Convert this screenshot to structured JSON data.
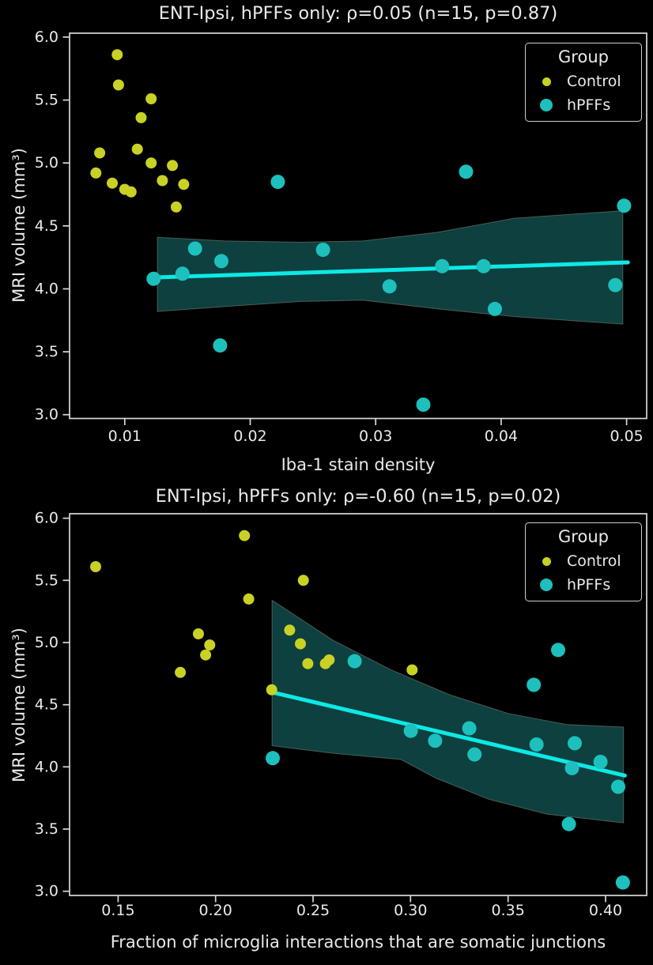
{
  "legend": {
    "title": "Group",
    "items": [
      {
        "label": "Control",
        "color_key": "control"
      },
      {
        "label": "hPFFs",
        "color_key": "hpffs"
      }
    ]
  },
  "colors": {
    "background": "#000000",
    "text": "#eaeaea",
    "axis": "#d9d9d9",
    "control": "#c9d125",
    "hpffs": "#1dc0bd",
    "regression": "#0de9e6",
    "band_fill": "#0d403e",
    "band_edge": "#5f6a61"
  },
  "chart_data": [
    {
      "type": "scatter",
      "title": "ENT-Ipsi, hPFFs only: ρ=0.05 (n=15, p=0.87)",
      "stats": {
        "rho": 0.05,
        "n": 15,
        "p": 0.87
      },
      "xlabel": "Iba-1 stain density",
      "ylabel": "MRI volume (mm³)",
      "xlim": [
        0.0056,
        0.0516
      ],
      "ylim": [
        2.97,
        6.031
      ],
      "xticks": [
        0.01,
        0.02,
        0.03,
        0.04,
        0.05
      ],
      "xtick_labels": [
        "0.01",
        "0.02",
        "0.03",
        "0.04",
        "0.05"
      ],
      "yticks": [
        6.0,
        5.5,
        5.0,
        4.5,
        4.0,
        3.5,
        3.0
      ],
      "ytick_labels": [
        "6.0",
        "5.5",
        "5.0",
        "4.5",
        "4.0",
        "3.5",
        "3.0"
      ],
      "grid": false,
      "legend_position": "upper right",
      "series": [
        {
          "name": "Control",
          "color_key": "control",
          "points": [
            [
              0.0094,
              5.86
            ],
            [
              0.0095,
              5.62
            ],
            [
              0.0121,
              5.51
            ],
            [
              0.0113,
              5.36
            ],
            [
              0.011,
              5.11
            ],
            [
              0.008,
              5.08
            ],
            [
              0.0121,
              5.0
            ],
            [
              0.0138,
              4.98
            ],
            [
              0.0077,
              4.92
            ],
            [
              0.013,
              4.86
            ],
            [
              0.009,
              4.84
            ],
            [
              0.0147,
              4.83
            ],
            [
              0.01,
              4.79
            ],
            [
              0.0105,
              4.77
            ],
            [
              0.0141,
              4.65
            ]
          ]
        },
        {
          "name": "hPFFs",
          "color_key": "hpffs",
          "points": [
            [
              0.0123,
              4.08
            ],
            [
              0.0146,
              4.12
            ],
            [
              0.0156,
              4.32
            ],
            [
              0.0177,
              4.22
            ],
            [
              0.0176,
              3.55
            ],
            [
              0.0222,
              4.85
            ],
            [
              0.0258,
              4.31
            ],
            [
              0.0311,
              4.02
            ],
            [
              0.0338,
              3.08
            ],
            [
              0.0353,
              4.18
            ],
            [
              0.0372,
              4.93
            ],
            [
              0.0386,
              4.18
            ],
            [
              0.0395,
              3.84
            ],
            [
              0.0491,
              4.03
            ],
            [
              0.0498,
              4.66
            ]
          ]
        }
      ],
      "regression_line": {
        "x": [
          0.0123,
          0.0501
        ],
        "y": [
          4.09,
          4.21
        ]
      },
      "confidence_band": {
        "top": [
          [
            0.0126,
            4.41
          ],
          [
            0.018,
            4.38
          ],
          [
            0.024,
            4.37
          ],
          [
            0.029,
            4.38
          ],
          [
            0.035,
            4.45
          ],
          [
            0.041,
            4.56
          ],
          [
            0.0497,
            4.62
          ]
        ],
        "bottom": [
          [
            0.0126,
            3.82
          ],
          [
            0.018,
            3.86
          ],
          [
            0.024,
            3.9
          ],
          [
            0.029,
            3.91
          ],
          [
            0.035,
            3.84
          ],
          [
            0.041,
            3.78
          ],
          [
            0.0497,
            3.72
          ]
        ]
      }
    },
    {
      "type": "scatter",
      "title": "ENT-Ipsi, hPFFs only: ρ=-0.60 (n=15, p=0.02)",
      "stats": {
        "rho": -0.6,
        "n": 15,
        "p": 0.02
      },
      "xlabel": "Fraction of microglia interactions that are somatic junctions",
      "ylabel": "MRI volume (mm³)",
      "xlim": [
        0.1251,
        0.4211
      ],
      "ylim": [
        2.966,
        6.036
      ],
      "xticks": [
        0.15,
        0.2,
        0.25,
        0.3,
        0.35,
        0.4
      ],
      "xtick_labels": [
        "0.15",
        "0.20",
        "0.25",
        "0.30",
        "0.35",
        "0.40"
      ],
      "yticks": [
        6.0,
        5.5,
        5.0,
        4.5,
        4.0,
        3.5,
        3.0
      ],
      "ytick_labels": [
        "6.0",
        "5.5",
        "5.0",
        "4.5",
        "4.0",
        "3.5",
        "3.0"
      ],
      "grid": false,
      "legend_position": "upper right",
      "series": [
        {
          "name": "Control",
          "color_key": "control",
          "points": [
            [
              0.1385,
              5.61
            ],
            [
              0.2148,
              5.86
            ],
            [
              0.245,
              5.5
            ],
            [
              0.217,
              5.35
            ],
            [
              0.238,
              5.1
            ],
            [
              0.1912,
              5.07
            ],
            [
              0.2435,
              4.99
            ],
            [
              0.197,
              4.98
            ],
            [
              0.1949,
              4.9
            ],
            [
              0.2473,
              4.83
            ],
            [
              0.2563,
              4.83
            ],
            [
              0.2582,
              4.86
            ],
            [
              0.1819,
              4.76
            ],
            [
              0.3008,
              4.78
            ],
            [
              0.2288,
              4.62
            ]
          ]
        },
        {
          "name": "hPFFs",
          "color_key": "hpffs",
          "points": [
            [
              0.2293,
              4.07
            ],
            [
              0.2713,
              4.85
            ],
            [
              0.3001,
              4.29
            ],
            [
              0.3126,
              4.21
            ],
            [
              0.3301,
              4.31
            ],
            [
              0.3328,
              4.1
            ],
            [
              0.3632,
              4.66
            ],
            [
              0.3646,
              4.18
            ],
            [
              0.3757,
              4.94
            ],
            [
              0.3842,
              4.19
            ],
            [
              0.3828,
              3.99
            ],
            [
              0.3974,
              4.04
            ],
            [
              0.4065,
              3.84
            ],
            [
              0.3812,
              3.54
            ],
            [
              0.4089,
              3.07
            ]
          ]
        }
      ],
      "regression_line": {
        "x": [
          0.229,
          0.4099
        ],
        "y": [
          4.6,
          3.93
        ]
      },
      "confidence_band": {
        "top": [
          [
            0.229,
            5.34
          ],
          [
            0.26,
            5.02
          ],
          [
            0.29,
            4.78
          ],
          [
            0.32,
            4.58
          ],
          [
            0.35,
            4.43
          ],
          [
            0.38,
            4.34
          ],
          [
            0.4092,
            4.32
          ]
        ],
        "bottom": [
          [
            0.229,
            4.17
          ],
          [
            0.26,
            4.11
          ],
          [
            0.295,
            4.06
          ],
          [
            0.313,
            3.91
          ],
          [
            0.34,
            3.74
          ],
          [
            0.37,
            3.62
          ],
          [
            0.4092,
            3.55
          ]
        ]
      }
    }
  ]
}
